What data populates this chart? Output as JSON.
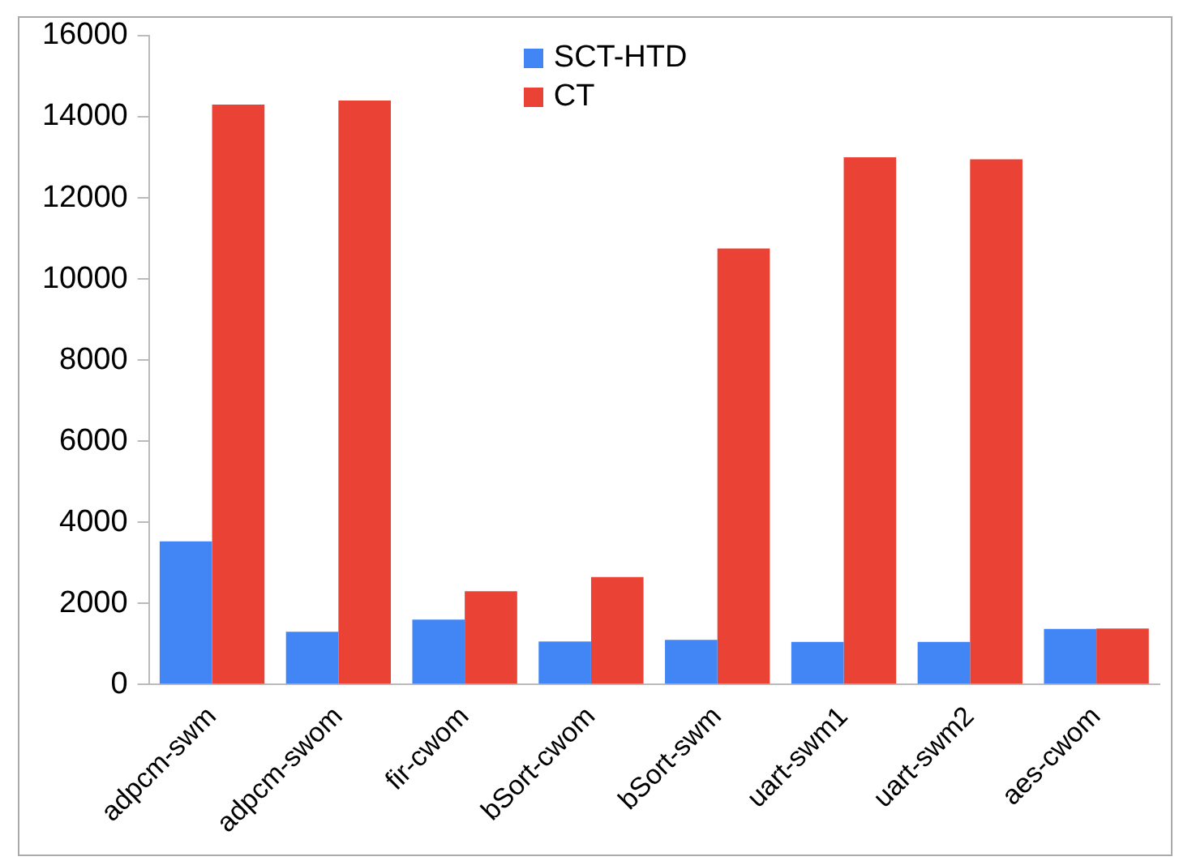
{
  "chart_data": {
    "type": "bar",
    "categories": [
      "adpcm-swm",
      "adpcm-swom",
      "fir-cwom",
      "bSort-cwom",
      "bSort-swm",
      "uart-swm1",
      "uart-swm2",
      "aes-cwom"
    ],
    "series": [
      {
        "name": "SCT-HTD",
        "color": "#4285f4",
        "values": [
          3530,
          1300,
          1600,
          1060,
          1100,
          1050,
          1050,
          1370
        ]
      },
      {
        "name": "CT",
        "color": "#ea4335",
        "values": [
          14300,
          14400,
          2300,
          2650,
          10750,
          13000,
          12950,
          1380
        ]
      }
    ],
    "ylim": [
      0,
      16000
    ],
    "yticks": [
      0,
      2000,
      4000,
      6000,
      8000,
      10000,
      12000,
      14000,
      16000
    ],
    "grid": false,
    "legend": "top"
  }
}
